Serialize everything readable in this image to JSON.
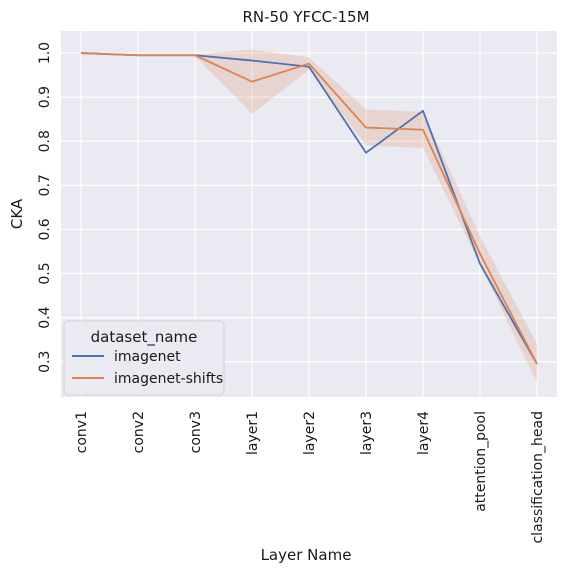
{
  "chart_data": {
    "type": "line",
    "title": "RN-50  YFCC-15M",
    "xlabel": "Layer Name",
    "ylabel": "CKA",
    "categories": [
      "conv1",
      "conv2",
      "conv3",
      "layer1",
      "layer2",
      "layer3",
      "layer4",
      "attention_pool",
      "classification_head"
    ],
    "ylim": [
      0.22,
      1.05
    ],
    "yticks": [
      "0.3",
      "0.4",
      "0.5",
      "0.6",
      "0.7",
      "0.8",
      "0.9",
      "1.0"
    ],
    "grid": true,
    "legend": {
      "title": "dataset_name",
      "placement": "lower-left"
    },
    "series": [
      {
        "name": "imagenet",
        "color": "#4c72b0",
        "values": [
          1.0,
          0.995,
          0.995,
          0.983,
          0.969,
          0.774,
          0.869,
          0.522,
          0.295
        ]
      },
      {
        "name": "imagenet-shifts",
        "color": "#dd8452",
        "values": [
          1.0,
          0.995,
          0.995,
          0.935,
          0.976,
          0.831,
          0.826,
          0.545,
          0.295
        ],
        "band_low": [
          1.0,
          0.993,
          0.993,
          0.862,
          0.962,
          0.79,
          0.785,
          0.52,
          0.252
        ],
        "band_high": [
          1.0,
          0.997,
          0.997,
          1.008,
          0.99,
          0.872,
          0.867,
          0.585,
          0.34
        ]
      }
    ]
  }
}
